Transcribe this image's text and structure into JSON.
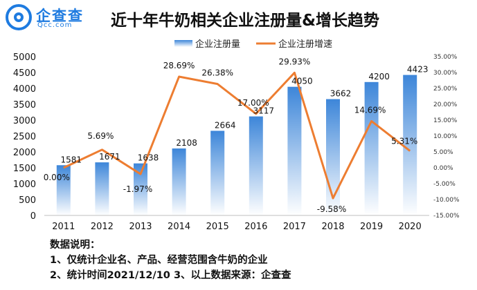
{
  "brand": {
    "name": "企查查",
    "url": "Qcc.com",
    "logo_icon": "qcc-logo-icon"
  },
  "colors": {
    "bar_top": "#3d86d9",
    "bar_bottom": "#ffffff",
    "line": "#ed7d31",
    "axis": "#bfbfbf",
    "brand": "#1e7be0"
  },
  "chart_data": {
    "type": "bar",
    "title": "近十年牛奶相关企业注册量&增长趋势",
    "categories": [
      "2011",
      "2012",
      "2013",
      "2014",
      "2015",
      "2016",
      "2017",
      "2018",
      "2019",
      "2020"
    ],
    "series": [
      {
        "name": "企业注册量",
        "type": "bar",
        "axis": "left",
        "values": [
          1581,
          1671,
          1638,
          2108,
          2664,
          3117,
          4050,
          3662,
          4200,
          4423
        ],
        "labels": [
          "1581",
          "1671",
          "1638",
          "2108",
          "2664",
          "3117",
          "4050",
          "3662",
          "4200",
          "4423"
        ]
      },
      {
        "name": "企业注册增速",
        "type": "line",
        "axis": "right",
        "values": [
          0.0,
          5.69,
          -1.97,
          28.69,
          26.38,
          17.0,
          29.93,
          -9.58,
          14.69,
          5.31
        ],
        "labels": [
          "0.00%",
          "5.69%",
          "-1.97%",
          "28.69%",
          "26.38%",
          "17.00%",
          "29.93%",
          "-9.58%",
          "14.69%",
          "5.31%"
        ]
      }
    ],
    "y_left": {
      "min": 0,
      "max": 5000,
      "ticks": [
        "0",
        "500",
        "1000",
        "1500",
        "2000",
        "2500",
        "3000",
        "3500",
        "4000",
        "4500",
        "5000"
      ]
    },
    "y_right": {
      "min": -15,
      "max": 35,
      "ticks": [
        "-15.00%",
        "-10.00%",
        "-5.00%",
        "0.00%",
        "5.00%",
        "10.00%",
        "15.00%",
        "20.00%",
        "25.00%",
        "30.00%",
        "35.00%"
      ]
    },
    "legend": "top-center",
    "grid": false
  },
  "notes": {
    "heading": "数据说明：",
    "line1": "1、仅统计企业名、产品、经营范围含牛奶的企业",
    "line2": "2、统计时间2021/12/10   3、以上数据来源：企查查"
  }
}
